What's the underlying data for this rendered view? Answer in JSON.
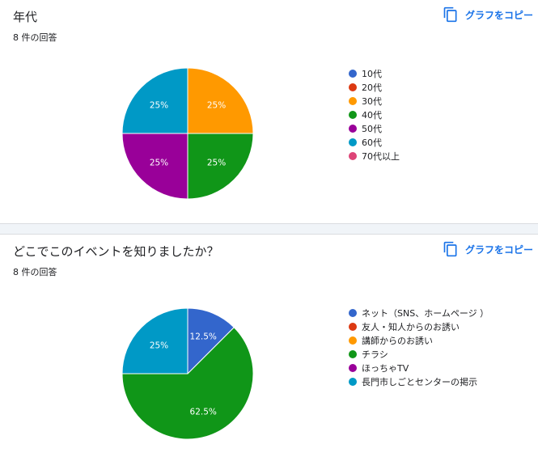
{
  "copy_label": "グラフをコピー",
  "copy_icon": "copy-icon",
  "accent_color": "#1a73e8",
  "chart_data": [
    {
      "type": "pie",
      "title": "年代",
      "response_count": "8 件の回答",
      "categories": [
        "10代",
        "20代",
        "30代",
        "40代",
        "50代",
        "60代",
        "70代以上"
      ],
      "colors": [
        "#3366cc",
        "#dc3912",
        "#ff9900",
        "#109618",
        "#990099",
        "#0099c6",
        "#dd4477"
      ],
      "values": [
        0,
        0,
        25,
        25,
        25,
        25,
        0
      ],
      "value_labels": [
        "",
        "",
        "25%",
        "25%",
        "25%",
        "25%",
        ""
      ],
      "legend_position": "right"
    },
    {
      "type": "pie",
      "title": "どこでこのイベントを知りましたか？",
      "response_count": "8 件の回答",
      "categories": [
        "ネット（SNS、ホームページ ）",
        "友人・知人からのお誘い",
        "講師からのお誘い",
        "チラシ",
        "ほっちゃTV",
        "長門市しごとセンターの掲示"
      ],
      "colors": [
        "#3366cc",
        "#dc3912",
        "#ff9900",
        "#109618",
        "#990099",
        "#0099c6"
      ],
      "values": [
        12.5,
        0,
        0,
        62.5,
        0,
        25
      ],
      "value_labels": [
        "12.5%",
        "",
        "",
        "62.5%",
        "",
        "25%"
      ],
      "legend_position": "right"
    }
  ]
}
